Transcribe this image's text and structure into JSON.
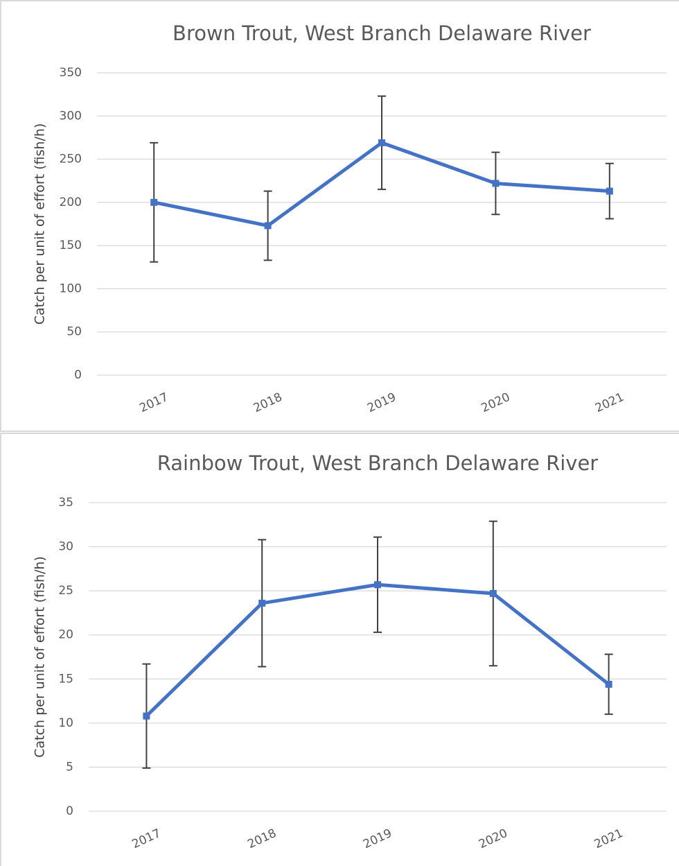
{
  "chart_data": [
    {
      "type": "line",
      "title": "Brown Trout, West Branch Delaware River",
      "y_label": "Catch per unit of effort (fish/h)",
      "categories": [
        "2017",
        "2018",
        "2019",
        "2020",
        "2021"
      ],
      "values": [
        200,
        173,
        269,
        222,
        213
      ],
      "errors": [
        69,
        40,
        54,
        36,
        32
      ],
      "color": "#4472c4",
      "ylim": [
        0,
        350
      ],
      "yticks": [
        0,
        50,
        100,
        150,
        200,
        250,
        300,
        350
      ],
      "grid": true
    },
    {
      "type": "line",
      "title": "Rainbow Trout, West Branch Delaware River",
      "y_label": "Catch per unit of effort (fish/h)",
      "categories": [
        "2017",
        "2018",
        "2019",
        "2020",
        "2021"
      ],
      "values": [
        10.8,
        23.6,
        25.7,
        24.7,
        14.4
      ],
      "errors": [
        5.9,
        7.2,
        5.4,
        8.2,
        3.4
      ],
      "color": "#4472c4",
      "ylim": [
        0,
        35
      ],
      "yticks": [
        0,
        5,
        10,
        15,
        20,
        25,
        30,
        35
      ],
      "grid": true
    }
  ]
}
